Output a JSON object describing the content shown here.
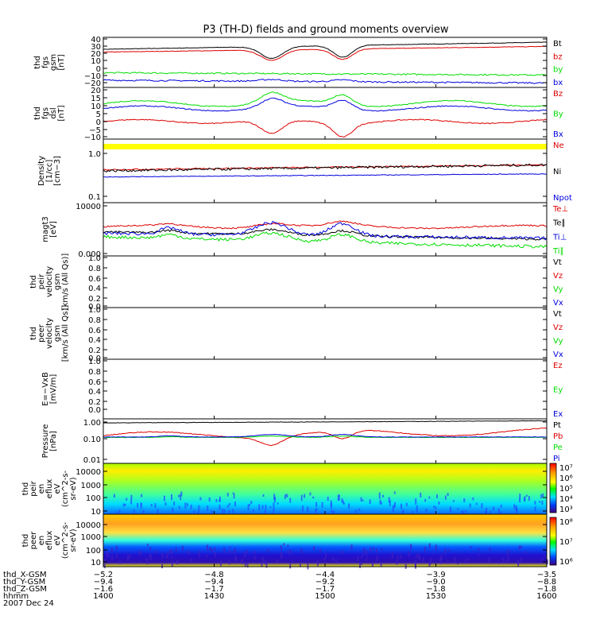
{
  "title": "P3 (TH-D) fields and ground moments overview",
  "colors": {
    "black": "#000000",
    "red": "#dd0000",
    "green": "#00dd00",
    "blue": "#0000dd",
    "yellow": "#ffff00"
  },
  "chart_data": [
    {
      "type": "line",
      "id": "fgs_gsm",
      "ylabel": [
        "thd",
        "fgs",
        "gsm",
        "[nT]"
      ],
      "yticks": [
        "40",
        "30",
        "20",
        "10",
        "0",
        "−10",
        "−20"
      ],
      "series": [
        {
          "name": "Bt",
          "color": "#000000"
        },
        {
          "name": "bz",
          "color": "#dd0000"
        },
        {
          "name": "by",
          "color": "#00dd00"
        },
        {
          "name": "bx",
          "color": "#0000dd"
        }
      ]
    },
    {
      "type": "line",
      "id": "fgs_dsl",
      "ylabel": [
        "thd",
        "fgs",
        "dsl",
        "[nT]"
      ],
      "yticks": [
        "20",
        "15",
        "10",
        "5",
        "0",
        "−5",
        "−10"
      ],
      "series": [
        {
          "name": "Bz",
          "color": "#dd0000"
        },
        {
          "name": "By",
          "color": "#00dd00"
        },
        {
          "name": "Bx",
          "color": "#0000dd"
        }
      ]
    },
    {
      "type": "line",
      "id": "density",
      "ylabel": [
        "Density",
        "[1/cc]",
        "[cm−3]"
      ],
      "yticks": [
        "1.0",
        "0.1"
      ],
      "log": true,
      "series": [
        {
          "name": "Ne",
          "color": "#dd0000"
        },
        {
          "name": "Ni",
          "color": "#000000"
        },
        {
          "name": "Npot",
          "color": "#0000dd"
        }
      ]
    },
    {
      "type": "line",
      "id": "temp",
      "ylabel": [
        "magt3",
        "[eV]"
      ],
      "yticks": [
        "10000",
        "0.000"
      ],
      "log": true,
      "series": [
        {
          "name": "Te⊥",
          "color": "#dd0000"
        },
        {
          "name": "Te∥",
          "color": "#000000"
        },
        {
          "name": "Ti⊥",
          "color": "#0000dd"
        },
        {
          "name": "Ti∥",
          "color": "#00dd00"
        }
      ]
    },
    {
      "type": "line",
      "id": "peir_v",
      "ylabel": [
        "thd",
        "peir",
        "velocity",
        "gsm",
        "[km/s (All Qs)]"
      ],
      "yticks": [
        "1.0",
        "0.8",
        "0.6",
        "0.4",
        "0.2",
        "0.0"
      ],
      "ylim": [
        0,
        1
      ],
      "series": [
        {
          "name": "Vt",
          "color": "#000000"
        },
        {
          "name": "Vz",
          "color": "#dd0000"
        },
        {
          "name": "Vy",
          "color": "#00dd00"
        },
        {
          "name": "Vx",
          "color": "#0000dd"
        }
      ]
    },
    {
      "type": "line",
      "id": "peer_v",
      "ylabel": [
        "thd",
        "peer",
        "velocity",
        "gsm",
        "[km/s (All Qs)]"
      ],
      "yticks": [
        "1.0",
        "0.8",
        "0.6",
        "0.4",
        "0.2",
        "0.0"
      ],
      "ylim": [
        0,
        1
      ],
      "series": [
        {
          "name": "Vt",
          "color": "#000000"
        },
        {
          "name": "Vz",
          "color": "#dd0000"
        },
        {
          "name": "Vy",
          "color": "#00dd00"
        },
        {
          "name": "Vx",
          "color": "#0000dd"
        }
      ]
    },
    {
      "type": "line",
      "id": "efield",
      "ylabel": [
        "E=−VxB",
        "[mV/m]"
      ],
      "yticks": [
        "1.0",
        "0.8",
        "0.6",
        "0.4",
        "0.2",
        "0.0"
      ],
      "ylim": [
        0,
        1
      ],
      "series": [
        {
          "name": "Ez",
          "color": "#dd0000"
        },
        {
          "name": "Ey",
          "color": "#00dd00"
        },
        {
          "name": "Ex",
          "color": "#0000dd"
        }
      ]
    },
    {
      "type": "line",
      "id": "pressure",
      "ylabel": [
        "Pressure",
        "[nPa]"
      ],
      "yticks": [
        "1.00",
        "0.10",
        "0.01"
      ],
      "log": true,
      "series": [
        {
          "name": "Pt",
          "color": "#000000"
        },
        {
          "name": "Pb",
          "color": "#dd0000"
        },
        {
          "name": "Pe",
          "color": "#00dd00"
        },
        {
          "name": "Pi",
          "color": "#0000dd"
        }
      ]
    },
    {
      "type": "heatmap",
      "id": "peir_eflux",
      "ylabel": [
        "thd",
        "peir",
        "en",
        "eflux",
        "eV",
        "(cm^2-s-",
        "sr-eV)"
      ],
      "yticks": [
        "10000",
        "1000",
        "100",
        "10"
      ],
      "colorbar": [
        "10⁷",
        "10⁶",
        "10⁵",
        "10⁴",
        "10³"
      ]
    },
    {
      "type": "heatmap",
      "id": "peer_eflux",
      "ylabel": [
        "thd",
        "peer",
        "en",
        "eflux",
        "eV",
        "(cm^2-s-",
        "sr-eV)"
      ],
      "yticks": [
        "10000",
        "1000",
        "100",
        "10"
      ],
      "colorbar": [
        "10⁸",
        "10⁷",
        "10⁶"
      ]
    }
  ],
  "xaxis": {
    "rows": [
      {
        "label": "thd_X-GSM",
        "values": [
          "−5.2",
          "−4.8",
          "−4.4",
          "−3.9",
          "−3.5"
        ]
      },
      {
        "label": "thd_Y-GSM",
        "values": [
          "−9.4",
          "−9.4",
          "−9.2",
          "−9.0",
          "−8.8"
        ]
      },
      {
        "label": "thd_Z-GSM",
        "values": [
          "−1.6",
          "−1.7",
          "−1.7",
          "−1.8",
          "−1.8"
        ]
      },
      {
        "label": "hhmm",
        "values": [
          "1400",
          "1430",
          "1500",
          "1530",
          "1600"
        ]
      }
    ],
    "date": "2007 Dec 24"
  }
}
